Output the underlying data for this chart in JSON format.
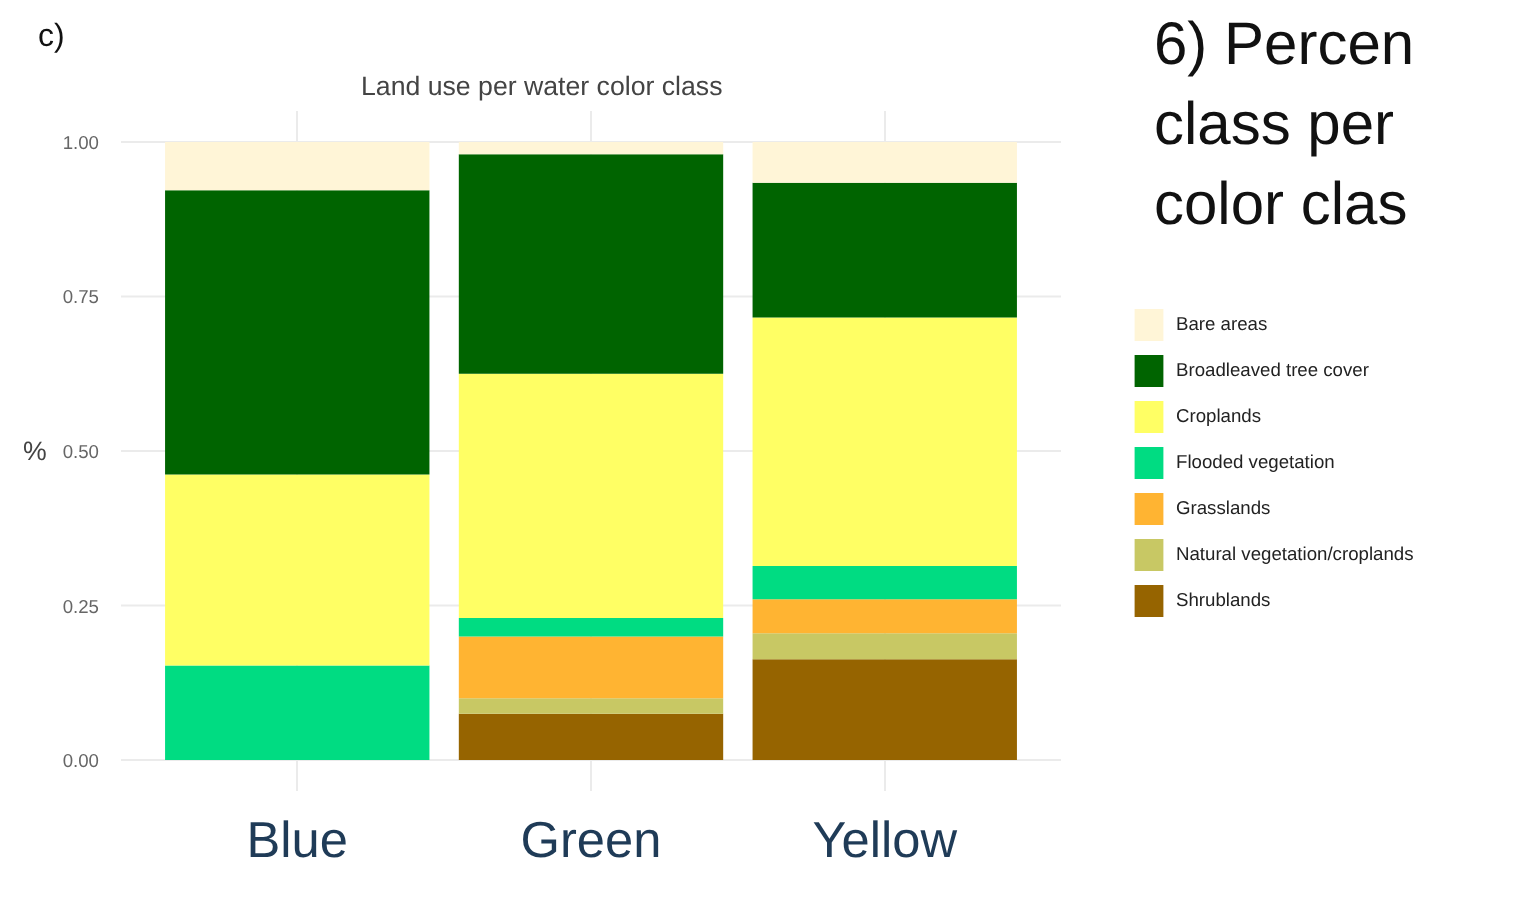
{
  "chart_data": {
    "type": "bar",
    "stacked": true,
    "title": "Land use per water color class",
    "ylabel": "%",
    "categories": [
      "Blue",
      "Green",
      "Yellow"
    ],
    "series": [
      {
        "name": "Shrublands",
        "color": "#966400",
        "values": [
          0,
          0.075,
          0.163
        ]
      },
      {
        "name": "Natural vegetation/croplands",
        "color": "#c8c864",
        "values": [
          0,
          0.025,
          0.042
        ]
      },
      {
        "name": "Grasslands",
        "color": "#ffb432",
        "values": [
          0,
          0.1,
          0.055
        ]
      },
      {
        "name": "Flooded vegetation",
        "color": "#00dc82",
        "values": [
          0.153,
          0.03,
          0.054
        ]
      },
      {
        "name": "Croplands",
        "color": "#ffff64",
        "values": [
          0.309,
          0.395,
          0.402
        ]
      },
      {
        "name": "Broadleaved tree cover",
        "color": "#006400",
        "values": [
          0.46,
          0.355,
          0.218
        ]
      },
      {
        "name": "Bare areas",
        "color": "#fff5d7",
        "values": [
          0.078,
          0.02,
          0.066
        ]
      }
    ],
    "ylim": [
      -0.05,
      1.05
    ],
    "yticks": [
      {
        "value": 0,
        "label": "0.00"
      },
      {
        "value": 0.25,
        "label": "0.25"
      },
      {
        "value": 0.5,
        "label": "0.50"
      },
      {
        "value": 0.75,
        "label": "0.75"
      },
      {
        "value": 1,
        "label": "1.00"
      }
    ],
    "grid": true,
    "legend": "right",
    "annotations": [
      "c)",
      "6) Percen",
      "class per",
      "color clas"
    ]
  }
}
